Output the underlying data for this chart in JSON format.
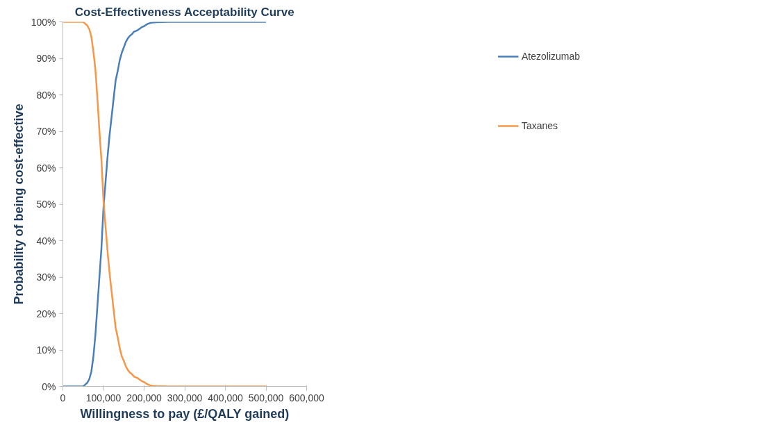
{
  "chart_data": {
    "type": "line",
    "title": "Cost-Effectiveness Acceptability Curve",
    "xlabel": "Willingness to pay (£/QALY gained)",
    "ylabel": "Probability of being cost-effective",
    "x": [
      0,
      50000,
      55000,
      60000,
      65000,
      70000,
      75000,
      80000,
      85000,
      90000,
      95000,
      100000,
      105000,
      110000,
      115000,
      120000,
      125000,
      130000,
      135000,
      140000,
      145000,
      150000,
      155000,
      160000,
      165000,
      170000,
      175000,
      180000,
      185000,
      190000,
      195000,
      200000,
      205000,
      210000,
      215000,
      220000,
      230000,
      260000,
      500000
    ],
    "series": [
      {
        "name": "Atezolizumab",
        "color": "#4a7ebb",
        "values": [
          0,
          0,
          0.5,
          1,
          2,
          4,
          8,
          14,
          22,
          30,
          38,
          49,
          56,
          63,
          69,
          74,
          79,
          84,
          86.5,
          89.5,
          91.5,
          93,
          94.5,
          95.5,
          96.2,
          96.6,
          97.3,
          97.5,
          97.8,
          98.2,
          98.6,
          98.8,
          99.2,
          99.5,
          99.7,
          99.8,
          99.9,
          100,
          100
        ]
      },
      {
        "name": "Taxanes",
        "color": "#f79646",
        "values": [
          100,
          100,
          99.5,
          99,
          98,
          96,
          92,
          87,
          79,
          70,
          62,
          51,
          44,
          37,
          31,
          26,
          21,
          16,
          13.5,
          10.5,
          8.3,
          7,
          5.5,
          4.5,
          3.8,
          3.4,
          2.7,
          2.5,
          2.2,
          1.8,
          1.4,
          1.2,
          0.8,
          0.5,
          0.3,
          0.2,
          0.1,
          0,
          0
        ]
      }
    ],
    "xlim": [
      0,
      600000
    ],
    "xticks": [
      {
        "value": 0,
        "label": "0"
      },
      {
        "value": 100000,
        "label": "100,000"
      },
      {
        "value": 200000,
        "label": "200,000"
      },
      {
        "value": 300000,
        "label": "300,000"
      },
      {
        "value": 400000,
        "label": "400,000"
      },
      {
        "value": 500000,
        "label": "500,000"
      },
      {
        "value": 600000,
        "label": "600,000"
      }
    ],
    "ylim": [
      0,
      100
    ],
    "yticks": [
      {
        "value": 0,
        "label": "0%"
      },
      {
        "value": 10,
        "label": "10%"
      },
      {
        "value": 20,
        "label": "20%"
      },
      {
        "value": 30,
        "label": "30%"
      },
      {
        "value": 40,
        "label": "40%"
      },
      {
        "value": 50,
        "label": "50%"
      },
      {
        "value": 60,
        "label": "60%"
      },
      {
        "value": 70,
        "label": "70%"
      },
      {
        "value": 80,
        "label": "80%"
      },
      {
        "value": 90,
        "label": "90%"
      },
      {
        "value": 100,
        "label": "100%"
      }
    ],
    "grid": false,
    "legend": "right",
    "marker": "none",
    "line_style": "solid"
  }
}
